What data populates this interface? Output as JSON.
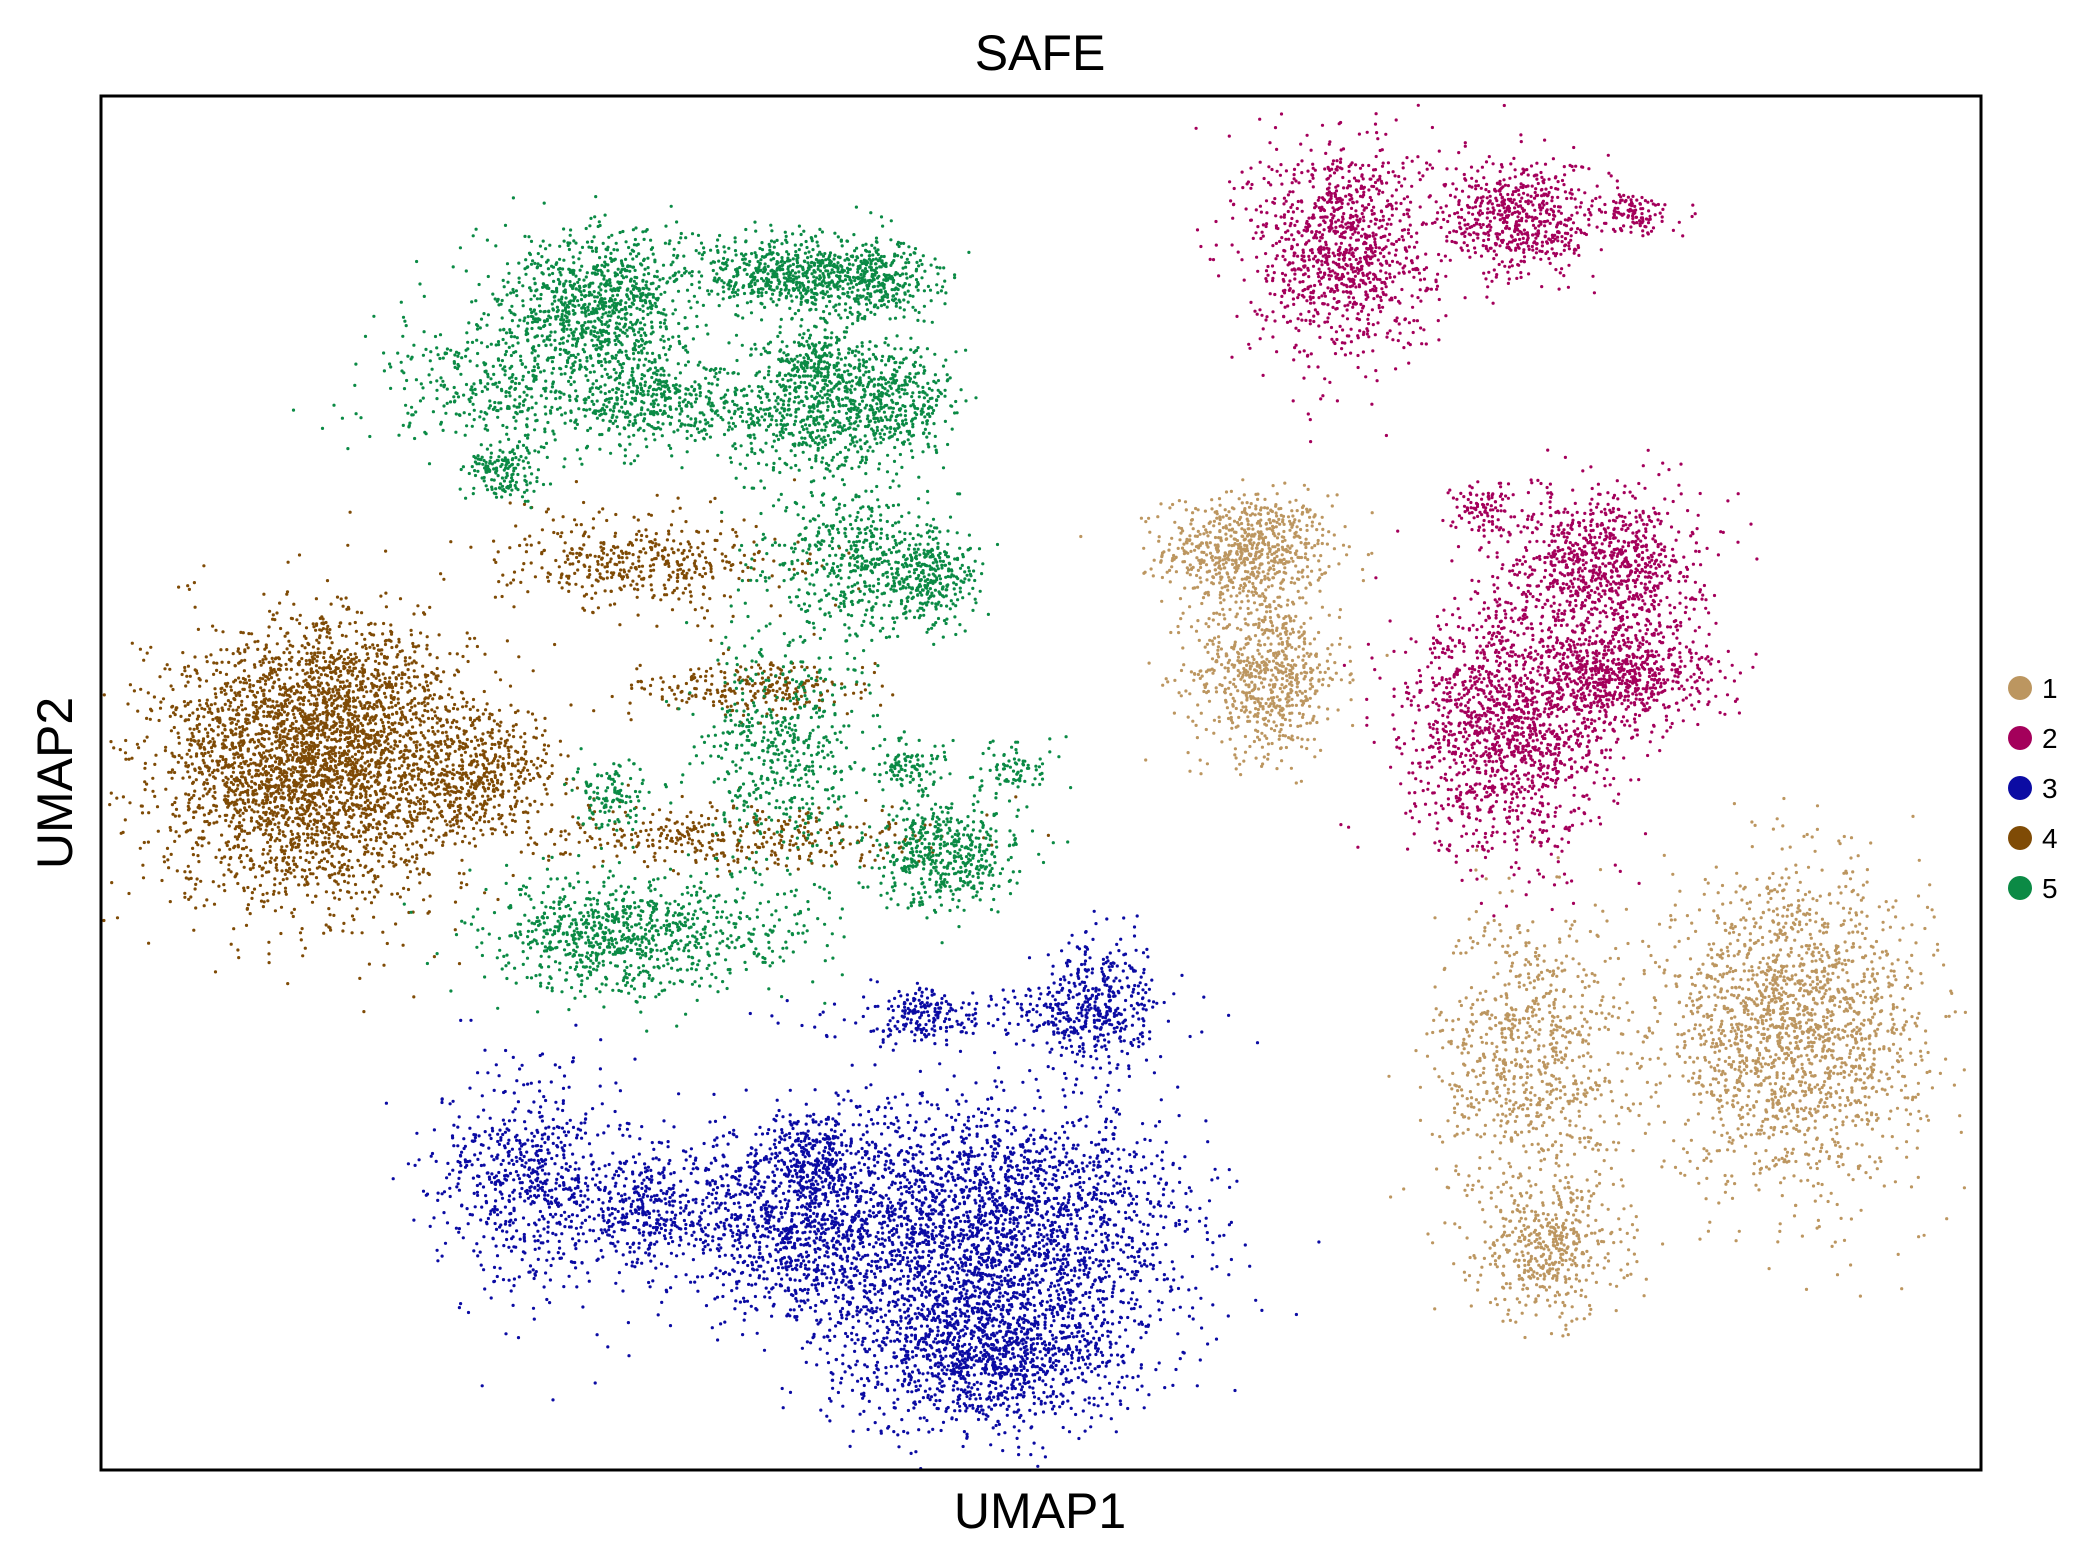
{
  "chart_data": {
    "type": "scatter",
    "title": "SAFE",
    "xlabel": "UMAP1",
    "ylabel": "UMAP2",
    "xticks": [],
    "yticks": [],
    "grid": false,
    "legend_position": "right",
    "xlim": [
      0,
      100
    ],
    "ylim": [
      0,
      100
    ],
    "series": [
      {
        "name": "1",
        "color": "#bc9660",
        "clusters": [
          {
            "center": [
              61,
              67
            ],
            "spread": [
              2.2,
              2.0
            ],
            "count": 700
          },
          {
            "center": [
              62,
              58
            ],
            "spread": [
              2.0,
              3.0
            ],
            "count": 700
          },
          {
            "center": [
              76,
              30
            ],
            "spread": [
              2.5,
              5.5
            ],
            "count": 800
          },
          {
            "center": [
              77,
              16
            ],
            "spread": [
              2.0,
              2.5
            ],
            "count": 450
          },
          {
            "center": [
              90,
              32
            ],
            "spread": [
              3.5,
              5.5
            ],
            "count": 1900
          }
        ]
      },
      {
        "name": "2",
        "color": "#a4005b",
        "clusters": [
          {
            "center": [
              66,
              89
            ],
            "spread": [
              2.4,
              4.0
            ],
            "count": 1100
          },
          {
            "center": [
              75.5,
              91
            ],
            "spread": [
              2.0,
              2.2
            ],
            "count": 600
          },
          {
            "center": [
              81.5,
              91.5
            ],
            "spread": [
              1.0,
              0.8
            ],
            "count": 120
          },
          {
            "center": [
              73.5,
              70
            ],
            "spread": [
              0.8,
              1.0
            ],
            "count": 100
          },
          {
            "center": [
              80,
              66
            ],
            "spread": [
              2.5,
              2.6
            ],
            "count": 900
          },
          {
            "center": [
              75,
              54
            ],
            "spread": [
              2.8,
              4.5
            ],
            "count": 1500
          },
          {
            "center": [
              81,
              58
            ],
            "spread": [
              2.4,
              2.0
            ],
            "count": 700
          }
        ]
      },
      {
        "name": "3",
        "color": "#0b0ba3",
        "clusters": [
          {
            "center": [
              23,
              21
            ],
            "spread": [
              2.5,
              4.0
            ],
            "count": 700
          },
          {
            "center": [
              29,
              19
            ],
            "spread": [
              1.8,
              2.0
            ],
            "count": 300
          },
          {
            "center": [
              37,
              18
            ],
            "spread": [
              3.5,
              3.5
            ],
            "count": 1200
          },
          {
            "center": [
              48,
              18
            ],
            "spread": [
              5.0,
              4.5
            ],
            "count": 2200
          },
          {
            "center": [
              47,
              9
            ],
            "spread": [
              4.0,
              3.0
            ],
            "count": 1500
          },
          {
            "center": [
              38,
              23
            ],
            "spread": [
              1.2,
              1.4
            ],
            "count": 200
          },
          {
            "center": [
              43.5,
              33
            ],
            "spread": [
              1.2,
              1.0
            ],
            "count": 150
          },
          {
            "center": [
              53,
              34
            ],
            "spread": [
              1.6,
              2.5
            ],
            "count": 400
          },
          {
            "center": [
              47,
              33
            ],
            "spread": [
              5.0,
              1.0
            ],
            "count": 150
          }
        ]
      },
      {
        "name": "4",
        "color": "#7f4b06",
        "clusters": [
          {
            "center": [
              11,
              51
            ],
            "spread": [
              4.0,
              5.0
            ],
            "count": 3200
          },
          {
            "center": [
              13,
              57
            ],
            "spread": [
              2.5,
              2.5
            ],
            "count": 400
          },
          {
            "center": [
              20,
              51
            ],
            "spread": [
              2.2,
              2.2
            ],
            "count": 500
          },
          {
            "center": [
              29,
              66
            ],
            "spread": [
              4.0,
              1.8
            ],
            "count": 450
          },
          {
            "center": [
              34.5,
              57
            ],
            "spread": [
              3.0,
              0.9
            ],
            "count": 250
          },
          {
            "center": [
              33,
              46
            ],
            "spread": [
              5.5,
              1.2
            ],
            "count": 400
          }
        ]
      },
      {
        "name": "5",
        "color": "#0b8a45",
        "clusters": [
          {
            "center": [
              26.5,
              85
            ],
            "spread": [
              2.5,
              2.6
            ],
            "count": 900
          },
          {
            "center": [
              37,
              87
            ],
            "spread": [
              2.8,
              1.4
            ],
            "count": 700
          },
          {
            "center": [
              41.5,
              86.5
            ],
            "spread": [
              1.5,
              1.4
            ],
            "count": 250
          },
          {
            "center": [
              29.5,
              78
            ],
            "spread": [
              2.0,
              2.0
            ],
            "count": 400
          },
          {
            "center": [
              37.5,
              77
            ],
            "spread": [
              2.5,
              2.5
            ],
            "count": 600
          },
          {
            "center": [
              42,
              77.5
            ],
            "spread": [
              1.8,
              2.0
            ],
            "count": 400
          },
          {
            "center": [
              38,
              81
            ],
            "spread": [
              1.0,
              1.0
            ],
            "count": 150
          },
          {
            "center": [
              22,
              79
            ],
            "spread": [
              3.5,
              3.0
            ],
            "count": 500
          },
          {
            "center": [
              21.5,
              72.5
            ],
            "spread": [
              1.0,
              1.0
            ],
            "count": 150
          },
          {
            "center": [
              40,
              66
            ],
            "spread": [
              2.5,
              3.0
            ],
            "count": 500
          },
          {
            "center": [
              44,
              65
            ],
            "spread": [
              1.5,
              1.8
            ],
            "count": 300
          },
          {
            "center": [
              36,
              52
            ],
            "spread": [
              2.2,
              4.0
            ],
            "count": 500
          },
          {
            "center": [
              27,
              39
            ],
            "spread": [
              3.0,
              2.3
            ],
            "count": 700
          },
          {
            "center": [
              45,
              45
            ],
            "spread": [
              2.0,
              2.0
            ],
            "count": 500
          },
          {
            "center": [
              43,
              51
            ],
            "spread": [
              1.0,
              1.0
            ],
            "count": 100
          },
          {
            "center": [
              48.5,
              51
            ],
            "spread": [
              1.2,
              0.9
            ],
            "count": 80
          },
          {
            "center": [
              27,
              49
            ],
            "spread": [
              1.0,
              1.2
            ],
            "count": 120
          },
          {
            "center": [
              33,
              39
            ],
            "spread": [
              3.0,
              2.0
            ],
            "count": 200
          }
        ]
      }
    ]
  }
}
